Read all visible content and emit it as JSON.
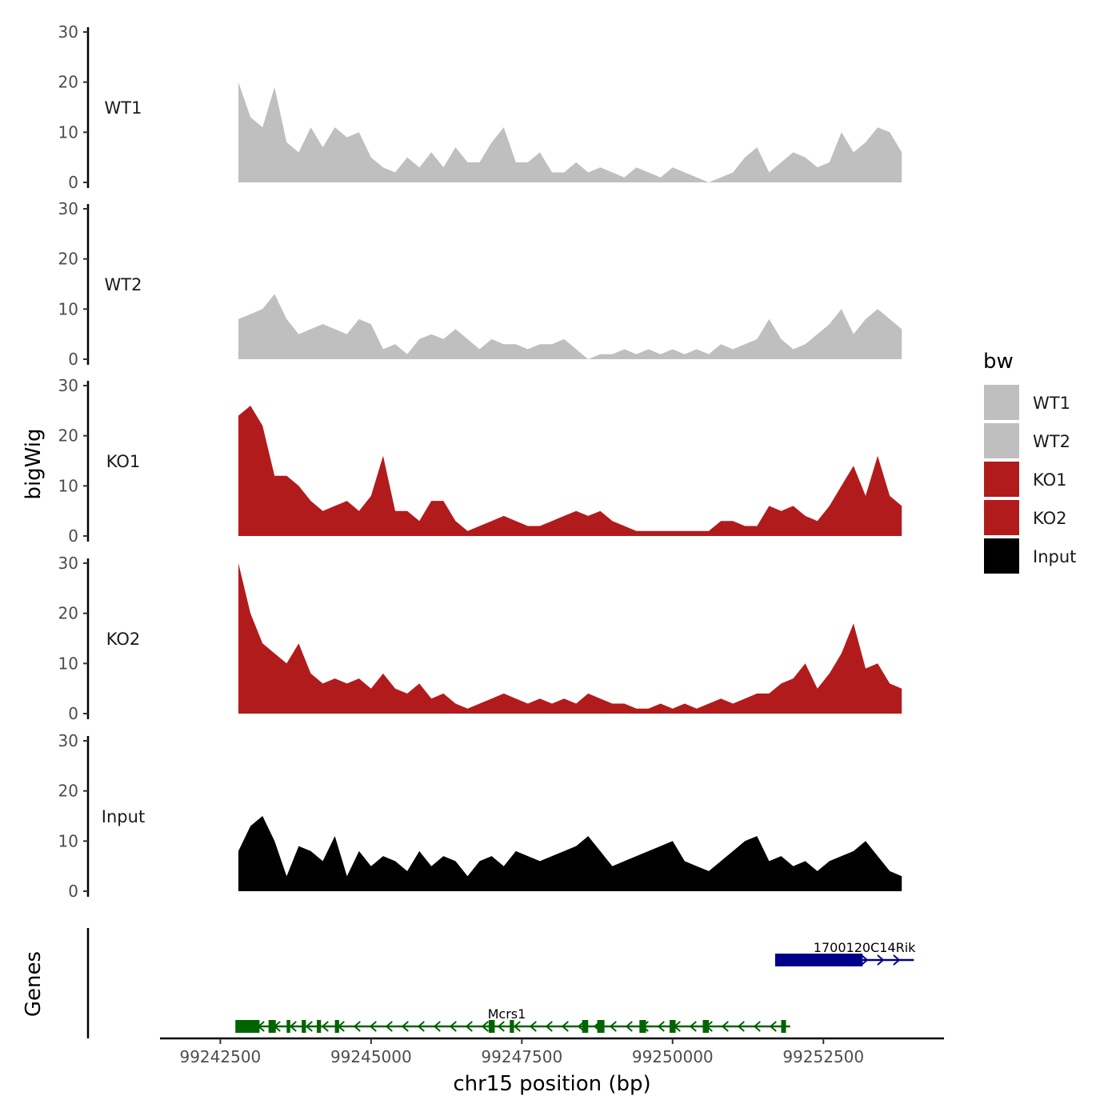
{
  "chart_data": {
    "type": "area",
    "ylabel": "bigWig",
    "xlabel": "chr15 position (bp)",
    "genes_label": "Genes",
    "ylim": [
      0,
      30
    ],
    "yticks": [
      "0",
      "10",
      "20",
      "30"
    ],
    "xlim": [
      99241500,
      99254500
    ],
    "xticks": [
      {
        "value": 99242500,
        "label": "99242500"
      },
      {
        "value": 99245000,
        "label": "99245000"
      },
      {
        "value": 99247500,
        "label": "99247500"
      },
      {
        "value": 99250000,
        "label": "99250000"
      },
      {
        "value": 99252500,
        "label": "99252500"
      }
    ],
    "legend": {
      "title": "bw",
      "position": "right",
      "entries": [
        {
          "name": "WT1",
          "color": "#bfbfbf"
        },
        {
          "name": "WT2",
          "color": "#bfbfbf"
        },
        {
          "name": "KO1",
          "color": "#b21b1c"
        },
        {
          "name": "KO2",
          "color": "#b21b1c"
        },
        {
          "name": "Input",
          "color": "#000000"
        }
      ]
    },
    "x": [
      99242800,
      99243000,
      99243200,
      99243400,
      99243600,
      99243800,
      99244000,
      99244200,
      99244400,
      99244600,
      99244800,
      99245000,
      99245200,
      99245400,
      99245600,
      99245800,
      99246000,
      99246200,
      99246400,
      99246600,
      99246800,
      99247000,
      99247200,
      99247400,
      99247600,
      99247800,
      99248000,
      99248200,
      99248400,
      99248600,
      99248800,
      99249000,
      99249200,
      99249400,
      99249600,
      99249800,
      99250000,
      99250200,
      99250400,
      99250600,
      99250800,
      99251000,
      99251200,
      99251400,
      99251600,
      99251800,
      99252000,
      99252200,
      99252400,
      99252600,
      99252800,
      99253000,
      99253200,
      99253400,
      99253600,
      99253800
    ],
    "series": [
      {
        "name": "WT1",
        "color": "#bfbfbf",
        "values": [
          20,
          13,
          11,
          19,
          8,
          6,
          11,
          7,
          11,
          9,
          10,
          5,
          3,
          2,
          5,
          3,
          6,
          3,
          7,
          4,
          4,
          8,
          11,
          4,
          4,
          6,
          2,
          2,
          4,
          2,
          3,
          2,
          1,
          3,
          2,
          1,
          3,
          2,
          1,
          0,
          1,
          2,
          5,
          7,
          2,
          4,
          6,
          5,
          3,
          4,
          10,
          6,
          8,
          11,
          10,
          6
        ]
      },
      {
        "name": "WT2",
        "color": "#bfbfbf",
        "values": [
          8,
          9,
          10,
          13,
          8,
          5,
          6,
          7,
          6,
          5,
          8,
          7,
          2,
          3,
          1,
          4,
          5,
          4,
          6,
          4,
          2,
          4,
          3,
          3,
          2,
          3,
          3,
          4,
          2,
          0,
          1,
          1,
          2,
          1,
          2,
          1,
          2,
          1,
          2,
          1,
          3,
          2,
          3,
          4,
          8,
          4,
          2,
          3,
          5,
          7,
          10,
          5,
          8,
          10,
          8,
          6
        ]
      },
      {
        "name": "KO1",
        "color": "#b21b1c",
        "values": [
          24,
          26,
          22,
          12,
          12,
          10,
          7,
          5,
          6,
          7,
          5,
          8,
          16,
          5,
          5,
          3,
          7,
          7,
          3,
          1,
          2,
          3,
          4,
          3,
          2,
          2,
          3,
          4,
          5,
          4,
          5,
          3,
          2,
          1,
          1,
          1,
          1,
          1,
          1,
          1,
          3,
          3,
          2,
          2,
          6,
          5,
          6,
          4,
          3,
          6,
          10,
          14,
          8,
          16,
          8,
          6
        ]
      },
      {
        "name": "KO2",
        "color": "#b21b1c",
        "values": [
          30,
          20,
          14,
          12,
          10,
          14,
          8,
          6,
          7,
          6,
          7,
          5,
          8,
          5,
          4,
          6,
          3,
          4,
          2,
          1,
          2,
          3,
          4,
          3,
          2,
          3,
          2,
          3,
          2,
          4,
          3,
          2,
          2,
          1,
          1,
          2,
          1,
          2,
          1,
          2,
          3,
          2,
          3,
          4,
          4,
          6,
          7,
          10,
          5,
          8,
          12,
          18,
          9,
          10,
          6,
          5
        ]
      },
      {
        "name": "Input",
        "color": "#000000",
        "values": [
          8,
          13,
          15,
          10,
          3,
          9,
          8,
          6,
          11,
          3,
          8,
          5,
          7,
          6,
          4,
          8,
          5,
          7,
          6,
          3,
          6,
          7,
          5,
          8,
          7,
          6,
          7,
          8,
          9,
          11,
          8,
          5,
          6,
          7,
          8,
          9,
          10,
          6,
          5,
          4,
          6,
          8,
          10,
          11,
          6,
          7,
          5,
          6,
          4,
          6,
          7,
          8,
          10,
          7,
          4,
          3
        ]
      }
    ],
    "genes": [
      {
        "name": "1700120C14Rik",
        "start": 99251700,
        "end": 99254000,
        "strand": "+",
        "color": "#00008b",
        "exons": [
          [
            99251700,
            99253150
          ]
        ]
      },
      {
        "name": "Mcrs1",
        "start": 99242750,
        "end": 99251950,
        "strand": "-",
        "color": "#006400",
        "exons": [
          [
            99242750,
            99243150
          ],
          [
            99243300,
            99243420
          ],
          [
            99243600,
            99243660
          ],
          [
            99243850,
            99243920
          ],
          [
            99244100,
            99244170
          ],
          [
            99244400,
            99244470
          ],
          [
            99246950,
            99247050
          ],
          [
            99247300,
            99247370
          ],
          [
            99248500,
            99248600
          ],
          [
            99248750,
            99248870
          ],
          [
            99249450,
            99249560
          ],
          [
            99249950,
            99250050
          ],
          [
            99250500,
            99250600
          ],
          [
            99251800,
            99251880
          ]
        ]
      }
    ]
  }
}
